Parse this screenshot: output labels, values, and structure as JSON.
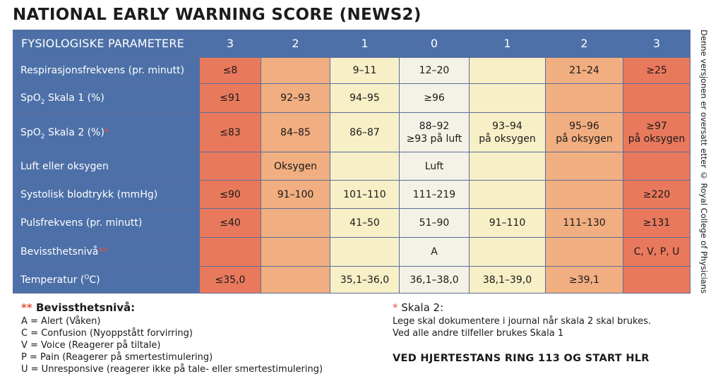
{
  "title": "NATIONAL EARLY WARNING SCORE (NEWS2)",
  "header": {
    "label": "FYSIOLOGISKE PARAMETERE",
    "scores": [
      "3",
      "2",
      "1",
      "0",
      "1",
      "2",
      "3"
    ]
  },
  "rows": [
    {
      "label": "Respirasjonsfrekvens (pr. minutt)",
      "cells": [
        "≤8",
        "",
        "9–11",
        "12–20",
        "",
        "21–24",
        "≥25"
      ]
    },
    {
      "label_pre": "SpO",
      "label_sub": "2",
      "label_post": " Skala 1 (%)",
      "cells": [
        "≤91",
        "92–93",
        "94–95",
        "≥96",
        "",
        "",
        ""
      ]
    },
    {
      "label_pre": "SpO",
      "label_sub": "2",
      "label_post": " Skala 2 (%)",
      "label_mark": "*",
      "cells": [
        "≤83",
        "84–85",
        "86–87",
        "88–92",
        "93–94",
        "95–96",
        "≥97"
      ],
      "cells2": [
        "",
        "",
        "",
        "≥93 på luft",
        "på oksygen",
        "på oksygen",
        "på oksygen"
      ]
    },
    {
      "label": "Luft eller oksygen",
      "cells": [
        "",
        "Oksygen",
        "",
        "Luft",
        "",
        "",
        ""
      ]
    },
    {
      "label": "Systolisk blodtrykk (mmHg)",
      "cells": [
        "≤90",
        "91–100",
        "101–110",
        "111–219",
        "",
        "",
        "≥220"
      ]
    },
    {
      "label": "Pulsfrekvens (pr. minutt)",
      "cells": [
        "≤40",
        "",
        "41–50",
        "51–90",
        "91–110",
        "111–130",
        "≥131"
      ]
    },
    {
      "label": "Bevissthetsnivå",
      "label_mark": "**",
      "cells": [
        "",
        "",
        "",
        "A",
        "",
        "",
        "C, V, P, U"
      ]
    },
    {
      "label_pre": "Temperatur (",
      "label_sup": "O",
      "label_post": "C)",
      "cells": [
        "≤35,0",
        "",
        "35,1–36,0",
        "36,1–38,0",
        "38,1–39,0",
        "≥39,1",
        ""
      ]
    }
  ],
  "side_note": "Denne versjonen er oversatt etter © Royal College of Physicians",
  "legend_left": {
    "mark": "**",
    "heading": "Bevissthetsnivå:",
    "items": [
      "A = Alert (Våken)",
      "C = Confusion (Nyoppstått forvirring)",
      "V = Voice (Reagerer på tiltale)",
      "P = Pain (Reagerer på smertestimulering)",
      "U = Unresponsive (reagerer ikke på tale- eller smertestimulering)"
    ]
  },
  "legend_right": {
    "mark": "*",
    "heading": "Skala 2:",
    "lines": [
      "Lege skal dokumentere i journal når skala 2 skal brukes.",
      "Ved alle andre tilfeller brukes Skala 1"
    ]
  },
  "warning": "VED HJERTESTANS RING 113 OG START HLR",
  "colors": {
    "header_blue": "#4d70a8",
    "score3": "#e9795c",
    "score2": "#f1ae80",
    "score1": "#f7efc6",
    "score0": "#f4f1e6",
    "asterisk": "#e0553b"
  }
}
